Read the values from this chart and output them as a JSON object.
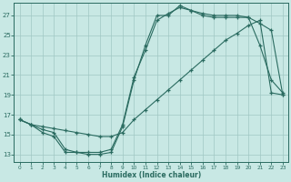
{
  "xlabel": "Humidex (Indice chaleur)",
  "bg_color": "#c8e8e4",
  "line_color": "#2a6b60",
  "grid_color": "#a0c8c4",
  "xlim": [
    -0.5,
    23.5
  ],
  "ylim": [
    12.2,
    28.3
  ],
  "xticks": [
    0,
    1,
    2,
    3,
    4,
    5,
    6,
    7,
    8,
    9,
    10,
    11,
    12,
    13,
    14,
    15,
    16,
    17,
    18,
    19,
    20,
    21,
    22,
    23
  ],
  "yticks": [
    13,
    15,
    17,
    19,
    21,
    23,
    25,
    27
  ],
  "line1_y": [
    16.5,
    16.0,
    15.2,
    14.8,
    13.2,
    13.2,
    13.0,
    13.0,
    13.2,
    15.8,
    20.5,
    24.0,
    27.0,
    27.0,
    28.0,
    27.5,
    27.0,
    26.8,
    26.8,
    26.8,
    26.8,
    24.0,
    20.5,
    19.2
  ],
  "line2_y": [
    16.5,
    16.0,
    15.5,
    15.2,
    13.5,
    13.2,
    13.2,
    13.2,
    13.5,
    16.0,
    20.8,
    23.5,
    26.5,
    27.2,
    27.8,
    27.5,
    27.2,
    27.0,
    27.0,
    27.0,
    26.8,
    26.2,
    25.5,
    19.0
  ],
  "line3_y": [
    16.5,
    16.0,
    15.8,
    15.6,
    15.4,
    15.2,
    15.0,
    14.8,
    14.8,
    15.2,
    16.5,
    17.5,
    18.5,
    19.5,
    20.5,
    21.5,
    22.5,
    23.5,
    24.5,
    25.2,
    26.0,
    26.5,
    19.2,
    19.0
  ]
}
